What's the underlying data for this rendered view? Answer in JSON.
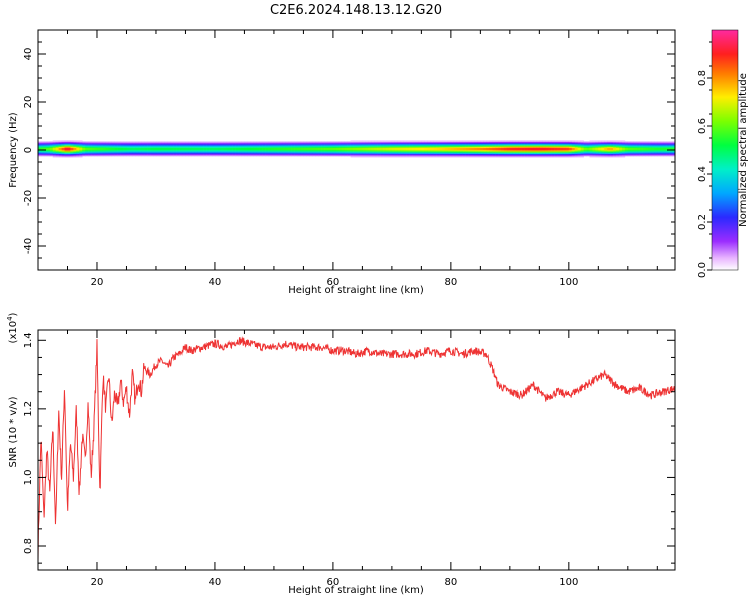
{
  "title": "C2E6.2024.148.13.12.G20",
  "chart_data": [
    {
      "type": "heatmap",
      "xlabel": "Height of straight line (km)",
      "ylabel": "Frequency (Hz)",
      "xlim": [
        10,
        118
      ],
      "ylim": [
        -50,
        50
      ],
      "x_ticks": [
        20,
        40,
        60,
        80,
        100
      ],
      "y_ticks": [
        40,
        20,
        0,
        -20,
        -40
      ],
      "grid": false,
      "colorbar": {
        "label": "Normalized spectral amplitude",
        "range": [
          0.0,
          1.0
        ],
        "ticks": [
          0.0,
          0.2,
          0.4,
          0.6,
          0.8
        ],
        "tick_labels": [
          "0.0",
          "0.2",
          "0.4",
          "0.6",
          "0.8"
        ]
      },
      "band": {
        "center_hz": 0.5,
        "half_width_hz": 3.5,
        "ridge_amplitude": [
          {
            "x": 10,
            "v": 0.55
          },
          {
            "x": 12,
            "v": 0.6
          },
          {
            "x": 15,
            "v": 0.95
          },
          {
            "x": 18,
            "v": 0.6
          },
          {
            "x": 22,
            "v": 0.55
          },
          {
            "x": 26,
            "v": 0.5
          },
          {
            "x": 30,
            "v": 0.52
          },
          {
            "x": 40,
            "v": 0.5
          },
          {
            "x": 50,
            "v": 0.55
          },
          {
            "x": 60,
            "v": 0.6
          },
          {
            "x": 70,
            "v": 0.7
          },
          {
            "x": 78,
            "v": 0.75
          },
          {
            "x": 85,
            "v": 0.82
          },
          {
            "x": 90,
            "v": 0.9
          },
          {
            "x": 95,
            "v": 0.92
          },
          {
            "x": 100,
            "v": 0.88
          },
          {
            "x": 103,
            "v": 0.6
          },
          {
            "x": 107,
            "v": 0.8
          },
          {
            "x": 110,
            "v": 0.6
          },
          {
            "x": 115,
            "v": 0.55
          },
          {
            "x": 118,
            "v": 0.55
          }
        ]
      }
    },
    {
      "type": "line",
      "xlabel": "Height of straight line (km)",
      "ylabel": "SNR (10 * v/v)",
      "y_multiplier": "(x10",
      "y_multiplier_exp": "4",
      "xlim": [
        10,
        118
      ],
      "ylim": [
        0.73,
        1.43
      ],
      "x_ticks": [
        20,
        40,
        60,
        80,
        100
      ],
      "y_ticks": [
        0.8,
        1.0,
        1.2,
        1.4
      ],
      "y_tick_labels": [
        "0.8",
        "1.0",
        "1.2",
        "1.4"
      ],
      "grid": false,
      "series": [
        {
          "color": "#ee3333",
          "x": [
            10,
            10.5,
            11,
            11.5,
            12,
            12.5,
            13,
            13.5,
            14,
            14.5,
            15,
            15.5,
            16,
            16.5,
            17,
            17.5,
            18,
            18.5,
            19,
            19.5,
            20,
            20.5,
            21,
            21.5,
            22,
            22.5,
            23,
            23.5,
            24,
            24.5,
            25,
            25.5,
            26,
            26.5,
            27,
            27.5,
            28,
            29,
            30,
            31,
            32,
            33,
            34,
            35,
            36,
            38,
            40,
            42,
            44,
            46,
            48,
            50,
            52,
            54,
            56,
            58,
            60,
            62,
            64,
            66,
            68,
            70,
            72,
            74,
            76,
            78,
            80,
            82,
            84,
            86,
            87,
            88,
            89,
            90,
            92,
            94,
            96,
            98,
            100,
            102,
            104,
            106,
            108,
            110,
            112,
            114,
            116,
            118
          ],
          "y": [
            0.78,
            1.12,
            0.88,
            1.08,
            0.95,
            1.15,
            0.85,
            1.2,
            1.0,
            1.27,
            0.9,
            1.1,
            1.0,
            1.2,
            0.95,
            1.12,
            1.05,
            1.22,
            1.0,
            1.15,
            1.38,
            0.95,
            1.3,
            1.2,
            1.3,
            1.15,
            1.25,
            1.2,
            1.28,
            1.22,
            1.26,
            1.18,
            1.3,
            1.22,
            1.29,
            1.25,
            1.32,
            1.3,
            1.33,
            1.34,
            1.32,
            1.35,
            1.36,
            1.38,
            1.37,
            1.38,
            1.39,
            1.38,
            1.4,
            1.39,
            1.38,
            1.38,
            1.39,
            1.38,
            1.38,
            1.38,
            1.37,
            1.37,
            1.36,
            1.37,
            1.36,
            1.36,
            1.36,
            1.36,
            1.37,
            1.36,
            1.37,
            1.36,
            1.37,
            1.36,
            1.32,
            1.27,
            1.26,
            1.25,
            1.24,
            1.27,
            1.23,
            1.25,
            1.24,
            1.26,
            1.28,
            1.3,
            1.27,
            1.25,
            1.26,
            1.24,
            1.25,
            1.26
          ]
        }
      ]
    }
  ]
}
